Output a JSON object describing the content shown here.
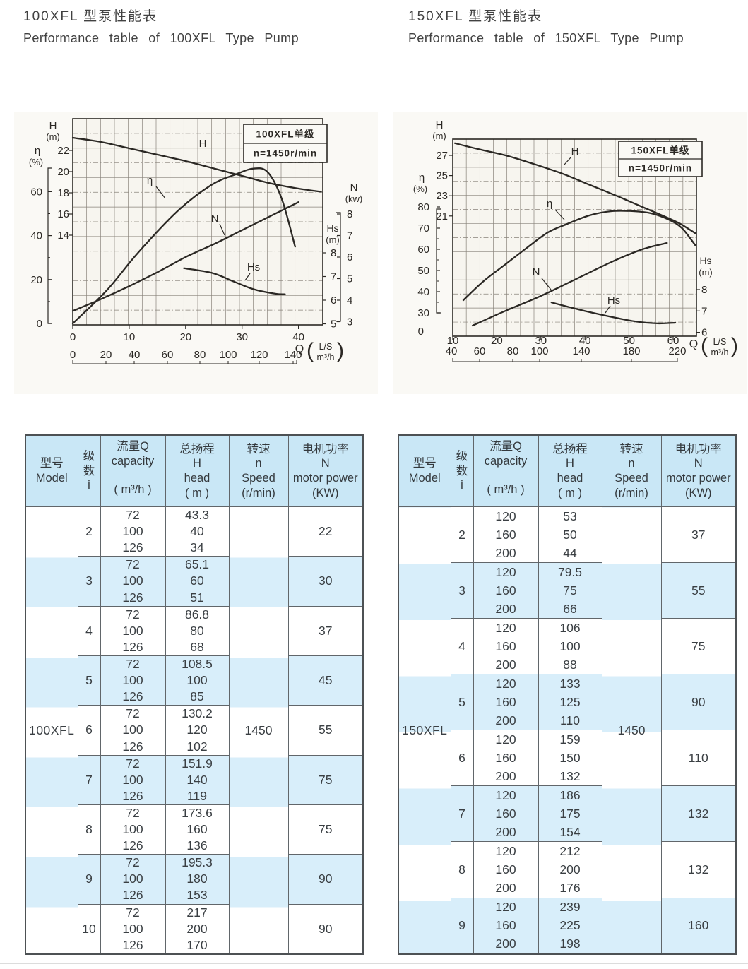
{
  "page": {
    "left": {
      "title_zh": "100XFL 型泵性能表",
      "title_en": "Performance table of 100XFL Type Pump"
    },
    "right": {
      "title_zh": "150XFL 型泵性能表",
      "title_en": "Performance table of 150XFL Type Pump"
    }
  },
  "table_header": {
    "model": "型号\nModel",
    "stage": "级\n数\ni",
    "capacity_top": "流量Q\ncapacity",
    "capacity_bottom": "( m³/h )",
    "head": "总扬程\nH\nhead\n( m )",
    "speed": "转速\nn\nSpeed\n(r/min)",
    "power": "电机功率\nN\nmotor power\n(KW)"
  },
  "tables": [
    {
      "model": "100XFL",
      "speed": "1450",
      "groups": [
        {
          "i": "2",
          "q": [
            "72",
            "100",
            "126"
          ],
          "h": [
            "43.3",
            "40",
            "34"
          ],
          "p": "22"
        },
        {
          "i": "3",
          "q": [
            "72",
            "100",
            "126"
          ],
          "h": [
            "65.1",
            "60",
            "51"
          ],
          "p": "30"
        },
        {
          "i": "4",
          "q": [
            "72",
            "100",
            "126"
          ],
          "h": [
            "86.8",
            "80",
            "68"
          ],
          "p": "37"
        },
        {
          "i": "5",
          "q": [
            "72",
            "100",
            "126"
          ],
          "h": [
            "108.5",
            "100",
            "85"
          ],
          "p": "45"
        },
        {
          "i": "6",
          "q": [
            "72",
            "100",
            "126"
          ],
          "h": [
            "130.2",
            "120",
            "102"
          ],
          "p": "55"
        },
        {
          "i": "7",
          "q": [
            "72",
            "100",
            "126"
          ],
          "h": [
            "151.9",
            "140",
            "119"
          ],
          "p": "75"
        },
        {
          "i": "8",
          "q": [
            "72",
            "100",
            "126"
          ],
          "h": [
            "173.6",
            "160",
            "136"
          ],
          "p": "75"
        },
        {
          "i": "9",
          "q": [
            "72",
            "100",
            "126"
          ],
          "h": [
            "195.3",
            "180",
            "153"
          ],
          "p": "90"
        },
        {
          "i": "10",
          "q": [
            "72",
            "100",
            "126"
          ],
          "h": [
            "217",
            "200",
            "170"
          ],
          "p": "90"
        }
      ]
    },
    {
      "model": "150XFL",
      "speed": "1450",
      "groups": [
        {
          "i": "2",
          "q": [
            "120",
            "160",
            "200"
          ],
          "h": [
            "53",
            "50",
            "44"
          ],
          "p": "37"
        },
        {
          "i": "3",
          "q": [
            "120",
            "160",
            "200"
          ],
          "h": [
            "79.5",
            "75",
            "66"
          ],
          "p": "55"
        },
        {
          "i": "4",
          "q": [
            "120",
            "160",
            "200"
          ],
          "h": [
            "106",
            "100",
            "88"
          ],
          "p": "75"
        },
        {
          "i": "5",
          "q": [
            "120",
            "160",
            "200"
          ],
          "h": [
            "133",
            "125",
            "110"
          ],
          "p": "90"
        },
        {
          "i": "6",
          "q": [
            "120",
            "160",
            "200"
          ],
          "h": [
            "159",
            "150",
            "132"
          ],
          "p": "110"
        },
        {
          "i": "7",
          "q": [
            "120",
            "160",
            "200"
          ],
          "h": [
            "186",
            "175",
            "154"
          ],
          "p": "132"
        },
        {
          "i": "8",
          "q": [
            "120",
            "160",
            "200"
          ],
          "h": [
            "212",
            "200",
            "176"
          ],
          "p": "132"
        },
        {
          "i": "9",
          "q": [
            "120",
            "160",
            "200"
          ],
          "h": [
            "239",
            "225",
            "198"
          ],
          "p": "160"
        }
      ]
    }
  ],
  "chart_data": [
    {
      "type": "line",
      "title_box": [
        "100XFL单级",
        "n=1450r/min"
      ],
      "x_axis": {
        "symbol": "Q",
        "units": [
          "L/S",
          "m³/h"
        ],
        "ls_ticks": [
          0,
          10,
          20,
          30,
          40
        ],
        "m3h_ticks": [
          0,
          20,
          40,
          60,
          80,
          100,
          120,
          140
        ]
      },
      "y_axes": {
        "H": {
          "label": "H",
          "unit": "(m)",
          "ticks": [
            22,
            20,
            18,
            16,
            14
          ]
        },
        "eta": {
          "label": "η",
          "unit": "(%)",
          "ticks": [
            60,
            40,
            20,
            0
          ]
        },
        "N": {
          "label": "N",
          "unit": "(kw)",
          "ticks": [
            8,
            7,
            6,
            5,
            4,
            3
          ]
        },
        "Hs": {
          "label": "Hs",
          "unit": "(m)",
          "ticks": [
            8,
            7,
            6,
            5
          ]
        }
      },
      "grid": true,
      "series": [
        {
          "name": "H",
          "axis": "H",
          "points": [
            [
              0,
              23.2
            ],
            [
              5,
              22.8
            ],
            [
              10,
              22.2
            ],
            [
              15,
              21.6
            ],
            [
              20,
              21.0
            ],
            [
              25,
              20.3
            ],
            [
              30,
              19.6
            ],
            [
              35,
              18.9
            ],
            [
              40,
              18.4
            ],
            [
              44,
              18.1
            ]
          ]
        },
        {
          "name": "η",
          "axis": "eta",
          "points": [
            [
              0,
              0
            ],
            [
              6,
              15
            ],
            [
              11.5,
              32
            ],
            [
              18.5,
              51
            ],
            [
              24.5,
              63
            ],
            [
              29,
              68
            ],
            [
              32,
              70.5
            ],
            [
              34.5,
              69
            ],
            [
              37,
              57
            ],
            [
              39.4,
              35
            ]
          ]
        },
        {
          "name": "N",
          "axis": "N",
          "points": [
            [
              0,
              3.5
            ],
            [
              5,
              4.05
            ],
            [
              10,
              4.65
            ],
            [
              15,
              5.3
            ],
            [
              20,
              6.0
            ],
            [
              25,
              6.6
            ],
            [
              30,
              7.25
            ],
            [
              35,
              7.9
            ],
            [
              40,
              8.55
            ]
          ]
        },
        {
          "name": "Hs",
          "axis": "Hs",
          "points": [
            [
              19.7,
              7.35
            ],
            [
              24.7,
              7.15
            ],
            [
              28.4,
              6.8
            ],
            [
              32.2,
              6.45
            ],
            [
              36,
              6.27
            ],
            [
              37.6,
              6.25
            ]
          ]
        }
      ]
    },
    {
      "type": "line",
      "title_box": [
        "150XFL单级",
        "n=1450r/min"
      ],
      "x_axis": {
        "symbol": "Q",
        "units": [
          "L/S",
          "m³/h"
        ],
        "ls_ticks": [
          10,
          20,
          30,
          40,
          50,
          60
        ],
        "m3h_ticks": [
          40,
          60,
          80,
          100,
          140,
          180,
          220
        ]
      },
      "y_axes": {
        "H": {
          "label": "H",
          "unit": "(m)",
          "ticks": [
            27,
            25,
            23,
            21
          ]
        },
        "eta": {
          "label": "η",
          "unit": "(%)",
          "ticks": [
            80,
            70,
            60,
            50,
            40,
            30
          ],
          "extra_zero": "0"
        },
        "Hs": {
          "label": "Hs",
          "unit": "(m)",
          "ticks": [
            8,
            7,
            6
          ]
        }
      },
      "grid": true,
      "note": "N axis unlabeled; N values estimated on the η percent scale",
      "series": [
        {
          "name": "H",
          "axis": "H",
          "points": [
            [
              10.5,
              28.2
            ],
            [
              16,
              27.6
            ],
            [
              22,
              27.0
            ],
            [
              28,
              26.2
            ],
            [
              34.8,
              25.2
            ],
            [
              41,
              24.1
            ],
            [
              47.7,
              22.9
            ],
            [
              53,
              21.9
            ],
            [
              57.3,
              21.1
            ],
            [
              61.3,
              20.3
            ],
            [
              65,
              19.3
            ]
          ]
        },
        {
          "name": "η",
          "axis": "eta",
          "points": [
            [
              12.4,
              36
            ],
            [
              17,
              45
            ],
            [
              22,
              53
            ],
            [
              27,
              61
            ],
            [
              31.6,
              68
            ],
            [
              36,
              72
            ],
            [
              41,
              76
            ],
            [
              46,
              78
            ],
            [
              51,
              78
            ],
            [
              55,
              77
            ],
            [
              59,
              74
            ],
            [
              62,
              70
            ],
            [
              65,
              62
            ]
          ]
        },
        {
          "name": "N",
          "axis": "N",
          "points": [
            [
              14.5,
              24
            ],
            [
              22,
              31
            ],
            [
              30,
              38
            ],
            [
              38,
              46
            ],
            [
              46,
              54
            ],
            [
              53,
              60
            ],
            [
              58.6,
              63
            ]
          ]
        },
        {
          "name": "Hs",
          "axis": "Hs",
          "points": [
            [
              32.4,
              7.4
            ],
            [
              37,
              7.15
            ],
            [
              42,
              6.9
            ],
            [
              47,
              6.68
            ],
            [
              51.7,
              6.5
            ],
            [
              56.5,
              6.42
            ],
            [
              60.5,
              6.45
            ]
          ]
        }
      ]
    }
  ]
}
